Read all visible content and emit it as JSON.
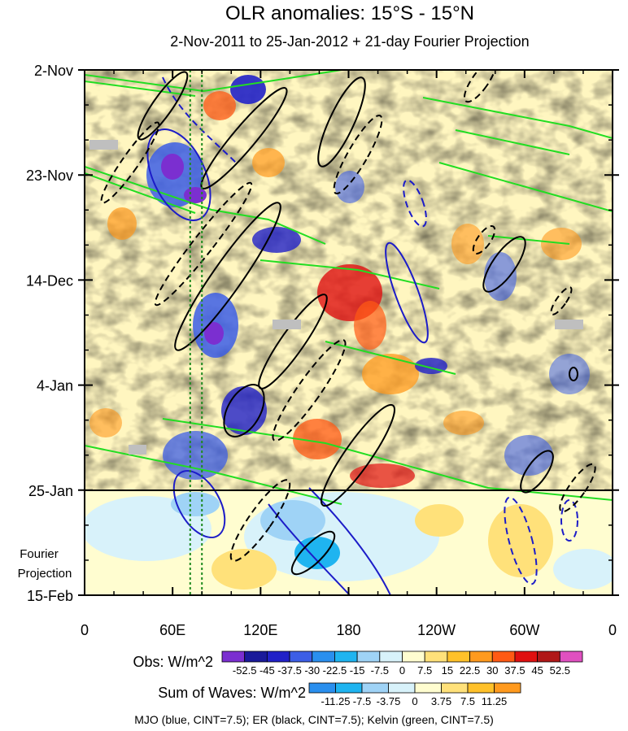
{
  "chart_data": {
    "type": "heatmap",
    "title": "OLR anomalies: 15°S - 15°N",
    "subtitle": "2-Nov-2011 to 25-Jan-2012 + 21-day Fourier Projection",
    "x_ticks": [
      "0",
      "60E",
      "120E",
      "180",
      "120W",
      "60W",
      "0"
    ],
    "x_tick_values": [
      0,
      60,
      120,
      180,
      240,
      300,
      360
    ],
    "y_ticks": [
      "2-Nov",
      "23-Nov",
      "14-Dec",
      "4-Jan",
      "25-Jan",
      "15-Feb"
    ],
    "y_tick_days": [
      0,
      21,
      42,
      63,
      84,
      105
    ],
    "xlim": [
      0,
      360
    ],
    "ylim_days": [
      0,
      105
    ],
    "observation_end_label": "25-Jan",
    "projection_label": [
      "Fourier",
      "Projection"
    ],
    "mjo_reference_lon": [
      72,
      80
    ],
    "obs_colorbar": {
      "label": "Obs: W/m^2",
      "levels": [
        "-52.5",
        "-45",
        "-37.5",
        "-30",
        "-22.5",
        "-15",
        "-7.5",
        "0",
        "7.5",
        "15",
        "22.5",
        "30",
        "37.5",
        "45",
        "52.5"
      ],
      "colors": [
        "#7b2fd0",
        "#1a1a9a",
        "#2121c8",
        "#3c5ee6",
        "#2a8fee",
        "#1fb4f0",
        "#9fd3f6",
        "#d8f2fa",
        "#fffdd0",
        "#ffe17a",
        "#ffc12a",
        "#ff9a1e",
        "#ff5a14",
        "#e01010",
        "#b01818",
        "#e050c0"
      ]
    },
    "waves_colorbar": {
      "label": "Sum of Waves: W/m^2",
      "levels": [
        "-11.25",
        "-7.5",
        "-3.75",
        "0",
        "3.75",
        "7.5",
        "11.25"
      ],
      "colors": [
        "#2a8fee",
        "#1fb4f0",
        "#9fd3f6",
        "#d8f2fa",
        "#fffdd0",
        "#ffe17a",
        "#ffc12a",
        "#ff9a1e"
      ]
    },
    "legend_note": "MJO (blue, CINT=7.5); ER (black, CINT=7.5); Kelvin (green, CINT=7.5)",
    "series_colors": {
      "MJO": "#1c1cc8",
      "ER": "#000000",
      "Kelvin": "#22dd22"
    }
  }
}
